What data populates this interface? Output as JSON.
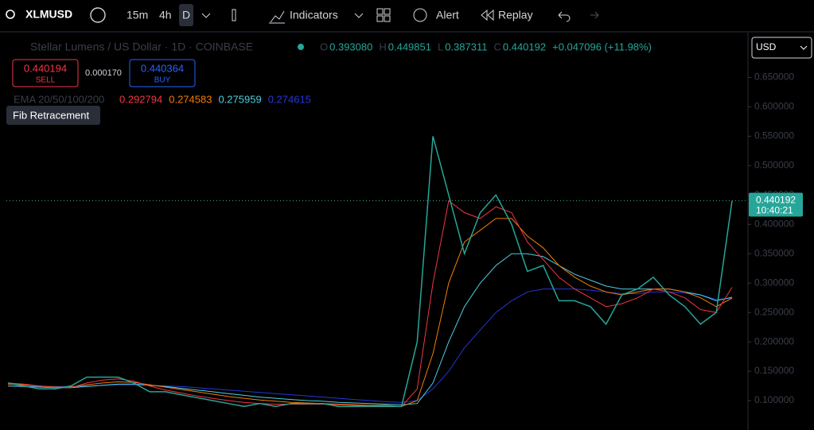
{
  "toolbar": {
    "symbol": "XLMUSD",
    "intervals": [
      "15m",
      "4h",
      "D"
    ],
    "indicators": "Indicators",
    "alert": "Alert",
    "replay": "Replay"
  },
  "legend": {
    "title": "Stellar Lumens / US Dollar · 1D · COINBASE",
    "ohlc": [
      "O",
      "0.393080",
      "H",
      "0.449851",
      "L",
      "0.387311",
      "C",
      "0.440192",
      "+0.047096 (+11.98%)"
    ],
    "sell_price": "0.440194",
    "sell": "SELL",
    "spread": "0.000170",
    "buy_price": "0.440364",
    "buy": "BUY",
    "ema_label": "EMA 20/50/100/200",
    "ema_values": [
      "0.292794",
      "0.274583",
      "0.275959",
      "0.274615"
    ],
    "tool_tip": "Fib Retracement",
    "currency": "USD"
  },
  "chart_data": {
    "type": "line",
    "ylim": [
      0.05,
      0.725
    ],
    "yticks": [
      {
        "value": 0.1,
        "label": "0.100000"
      },
      {
        "value": 0.15,
        "label": "0.150000"
      },
      {
        "value": 0.2,
        "label": "0.200000"
      },
      {
        "value": 0.25,
        "label": "0.250000"
      },
      {
        "value": 0.3,
        "label": "0.300000"
      },
      {
        "value": 0.35,
        "label": "0.350000"
      },
      {
        "value": 0.4,
        "label": "0.400000"
      },
      {
        "value": 0.45,
        "label": "0.450000"
      },
      {
        "value": 0.5,
        "label": "0.500000"
      },
      {
        "value": 0.55,
        "label": "0.550000"
      },
      {
        "value": 0.6,
        "label": "0.600000"
      },
      {
        "value": 0.65,
        "label": "0.650000"
      }
    ],
    "last_price": {
      "value": 0.440192,
      "label": "0.440192",
      "countdown": "10:40:21"
    },
    "series": [
      {
        "name": "Close",
        "color": "#26a69a",
        "values": [
          0.13,
          0.125,
          0.12,
          0.12,
          0.125,
          0.14,
          0.14,
          0.14,
          0.13,
          0.115,
          0.115,
          0.11,
          0.105,
          0.1,
          0.095,
          0.09,
          0.095,
          0.09,
          0.095,
          0.095,
          0.095,
          0.09,
          0.09,
          0.09,
          0.09,
          0.09,
          0.2,
          0.55,
          0.45,
          0.35,
          0.42,
          0.45,
          0.4,
          0.32,
          0.33,
          0.27,
          0.27,
          0.26,
          0.23,
          0.28,
          0.29,
          0.31,
          0.28,
          0.26,
          0.23,
          0.25,
          0.44
        ]
      },
      {
        "name": "EMA 20",
        "color": "#f23645",
        "values": [
          0.13,
          0.128,
          0.125,
          0.122,
          0.122,
          0.13,
          0.135,
          0.137,
          0.133,
          0.125,
          0.118,
          0.113,
          0.108,
          0.104,
          0.1,
          0.097,
          0.095,
          0.094,
          0.094,
          0.094,
          0.094,
          0.093,
          0.092,
          0.091,
          0.091,
          0.09,
          0.12,
          0.3,
          0.44,
          0.42,
          0.41,
          0.43,
          0.42,
          0.37,
          0.34,
          0.31,
          0.29,
          0.275,
          0.26,
          0.265,
          0.275,
          0.29,
          0.285,
          0.275,
          0.255,
          0.25,
          0.292794
        ]
      },
      {
        "name": "EMA 50",
        "color": "#f57c00",
        "values": [
          0.128,
          0.127,
          0.125,
          0.123,
          0.123,
          0.127,
          0.13,
          0.132,
          0.131,
          0.127,
          0.123,
          0.119,
          0.115,
          0.111,
          0.107,
          0.104,
          0.101,
          0.099,
          0.097,
          0.096,
          0.095,
          0.094,
          0.093,
          0.092,
          0.092,
          0.09,
          0.1,
          0.18,
          0.3,
          0.37,
          0.39,
          0.41,
          0.41,
          0.38,
          0.36,
          0.33,
          0.31,
          0.295,
          0.285,
          0.28,
          0.285,
          0.29,
          0.29,
          0.285,
          0.275,
          0.26,
          0.274583
        ]
      },
      {
        "name": "EMA 100",
        "color": "#4dd0e1",
        "values": [
          0.125,
          0.124,
          0.123,
          0.122,
          0.122,
          0.124,
          0.126,
          0.128,
          0.128,
          0.126,
          0.124,
          0.121,
          0.118,
          0.115,
          0.112,
          0.109,
          0.106,
          0.104,
          0.102,
          0.1,
          0.099,
          0.097,
          0.096,
          0.095,
          0.094,
          0.093,
          0.095,
          0.13,
          0.2,
          0.26,
          0.3,
          0.33,
          0.35,
          0.35,
          0.345,
          0.33,
          0.315,
          0.305,
          0.295,
          0.29,
          0.29,
          0.29,
          0.29,
          0.285,
          0.28,
          0.27,
          0.275959
        ]
      },
      {
        "name": "EMA 200",
        "color": "#2636d8",
        "values": [
          0.125,
          0.125,
          0.124,
          0.124,
          0.124,
          0.125,
          0.126,
          0.127,
          0.127,
          0.126,
          0.125,
          0.124,
          0.122,
          0.12,
          0.118,
          0.116,
          0.114,
          0.112,
          0.11,
          0.108,
          0.106,
          0.104,
          0.102,
          0.1,
          0.098,
          0.097,
          0.1,
          0.12,
          0.15,
          0.19,
          0.22,
          0.25,
          0.27,
          0.285,
          0.29,
          0.29,
          0.29,
          0.288,
          0.285,
          0.282,
          0.282,
          0.285,
          0.285,
          0.283,
          0.28,
          0.272,
          0.274615
        ]
      }
    ]
  }
}
